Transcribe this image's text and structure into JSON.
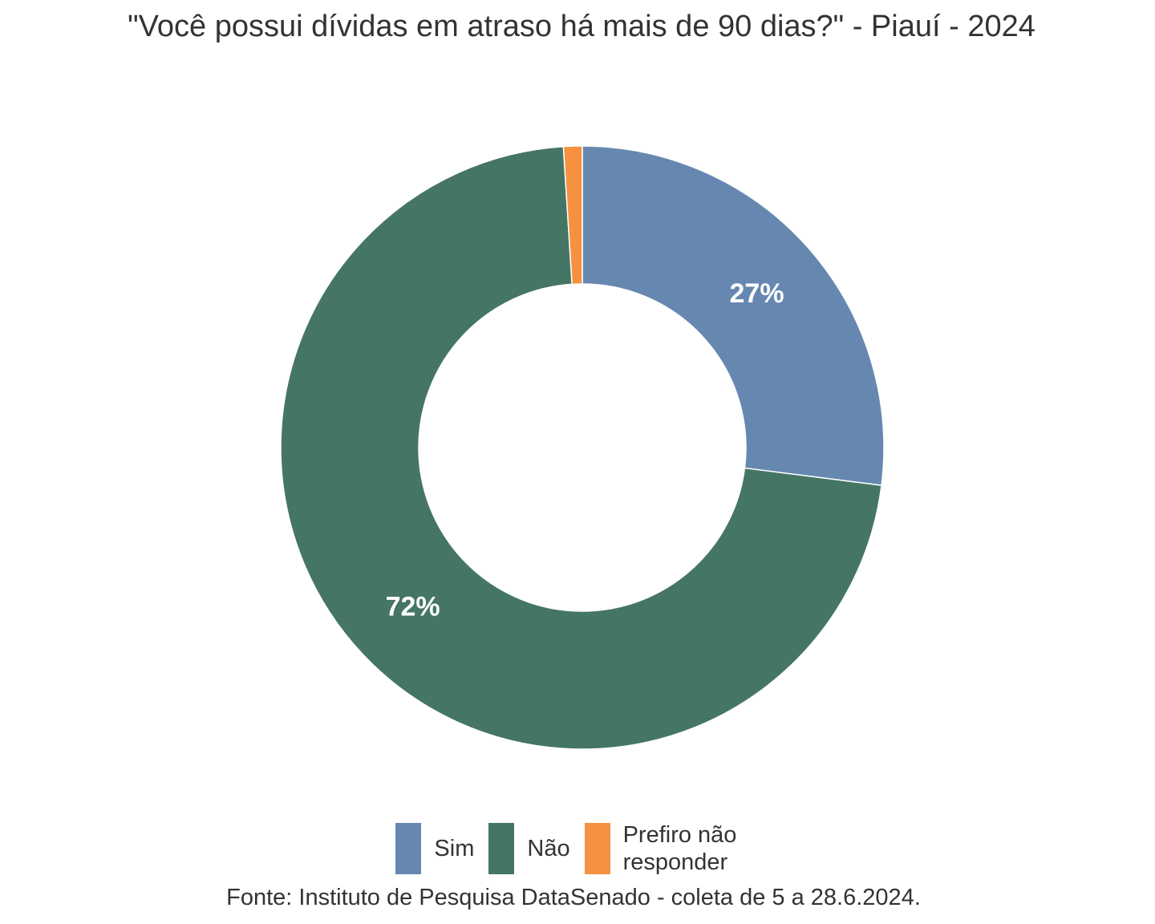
{
  "chart_data": {
    "type": "pie",
    "title": "\"Você possui dívidas em atraso há mais de 90 dias?\" - Piauí - 2024",
    "categories": [
      "Sim",
      "Não",
      "Prefiro não responder"
    ],
    "values": [
      27,
      72,
      1
    ],
    "data_labels": [
      "27%",
      "72%",
      ""
    ],
    "colors": [
      "#6688b0",
      "#457565",
      "#f5913f"
    ],
    "legend_position": "bottom",
    "donut": true
  },
  "legend": {
    "items": [
      {
        "label": "Sim",
        "color": "#6688b0"
      },
      {
        "label": "Não",
        "color": "#457565"
      },
      {
        "label": "Prefiro não responder",
        "color": "#f5913f"
      }
    ]
  },
  "caption": "Fonte: Instituto de Pesquisa DataSenado - coleta de 5 a 28.6.2024."
}
